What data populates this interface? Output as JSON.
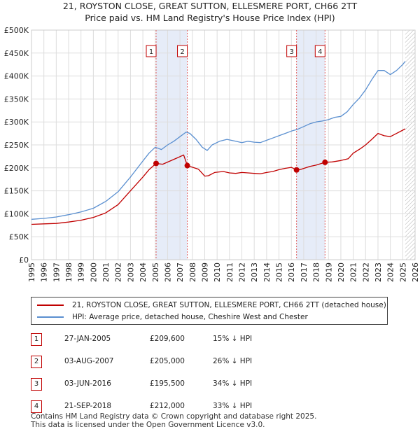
{
  "title_line1": "21, ROYSTON CLOSE, GREAT SUTTON, ELLESMERE PORT, CH66 2TT",
  "title_line2": "Price paid vs. HM Land Registry's House Price Index (HPI)",
  "chart_data": {
    "type": "line",
    "title": "21, ROYSTON CLOSE, GREAT SUTTON, ELLESMERE PORT, CH66 2TT — Price paid vs. HM Land Registry's House Price Index (HPI)",
    "xlim": [
      1995,
      2026
    ],
    "ylim": [
      0,
      500000
    ],
    "x_ticks": [
      1995,
      1996,
      1997,
      1998,
      1999,
      2000,
      2001,
      2002,
      2003,
      2004,
      2005,
      2006,
      2007,
      2008,
      2009,
      2010,
      2011,
      2012,
      2013,
      2014,
      2015,
      2016,
      2017,
      2018,
      2019,
      2020,
      2021,
      2022,
      2023,
      2024,
      2025,
      2026
    ],
    "y_ticks": [
      {
        "value": 0,
        "label": "£0"
      },
      {
        "value": 50000,
        "label": "£50K"
      },
      {
        "value": 100000,
        "label": "£100K"
      },
      {
        "value": 150000,
        "label": "£150K"
      },
      {
        "value": 200000,
        "label": "£200K"
      },
      {
        "value": 250000,
        "label": "£250K"
      },
      {
        "value": 300000,
        "label": "£300K"
      },
      {
        "value": 350000,
        "label": "£350K"
      },
      {
        "value": 400000,
        "label": "£400K"
      },
      {
        "value": 450000,
        "label": "£450K"
      },
      {
        "value": 500000,
        "label": "£500K"
      }
    ],
    "grid": true,
    "colors": {
      "hpi": "#5a8fd0",
      "price": "#c00000",
      "shade": "#e6ecf8",
      "marker_line": "#e06060"
    },
    "series": [
      {
        "name": "21, ROYSTON CLOSE, GREAT SUTTON, ELLESMERE PORT, CH66 2TT (detached house)",
        "color": "#c00000",
        "x": [
          1995.0,
          1996.0,
          1997.0,
          1998.0,
          1999.0,
          2000.0,
          2001.0,
          2002.0,
          2003.0,
          2004.0,
          2004.5,
          2005.07,
          2005.6,
          2006.2,
          2006.8,
          2007.3,
          2007.59,
          2007.8,
          2008.5,
          2009.0,
          2009.3,
          2009.8,
          2010.5,
          2011.0,
          2011.5,
          2012.0,
          2012.5,
          2013.0,
          2013.5,
          2014.0,
          2014.5,
          2015.0,
          2015.5,
          2016.0,
          2016.42,
          2016.8,
          2017.5,
          2018.0,
          2018.72,
          2019.3,
          2020.0,
          2020.6,
          2021.0,
          2021.6,
          2022.0,
          2022.5,
          2023.0,
          2023.5,
          2024.0,
          2024.5,
          2025.0,
          2025.2
        ],
        "values": [
          77000,
          78000,
          79000,
          82000,
          86000,
          92000,
          102000,
          120000,
          150000,
          180000,
          196000,
          209600,
          208000,
          215000,
          222000,
          228000,
          205000,
          203000,
          197000,
          182000,
          183000,
          190000,
          192000,
          189000,
          188000,
          190000,
          189000,
          188000,
          187000,
          190000,
          192000,
          196000,
          199000,
          201000,
          195500,
          197000,
          203000,
          206000,
          212000,
          213000,
          216000,
          220000,
          232000,
          242000,
          250000,
          262000,
          275000,
          270000,
          268000,
          275000,
          282000,
          285000
        ]
      },
      {
        "name": "HPI: Average price, detached house, Cheshire West and Chester",
        "color": "#5a8fd0",
        "x": [
          1995.0,
          1996.0,
          1997.0,
          1998.0,
          1999.0,
          2000.0,
          2001.0,
          2002.0,
          2003.0,
          2004.0,
          2004.5,
          2005.0,
          2005.5,
          2006.0,
          2006.5,
          2007.0,
          2007.5,
          2007.8,
          2008.3,
          2008.8,
          2009.2,
          2009.6,
          2010.2,
          2010.8,
          2011.5,
          2012.0,
          2012.5,
          2013.0,
          2013.5,
          2014.0,
          2014.5,
          2015.0,
          2015.5,
          2016.0,
          2016.5,
          2017.0,
          2017.5,
          2018.0,
          2018.5,
          2019.0,
          2019.5,
          2020.0,
          2020.5,
          2021.0,
          2021.5,
          2022.0,
          2022.5,
          2023.0,
          2023.5,
          2024.0,
          2024.5,
          2025.0,
          2025.2
        ],
        "values": [
          88000,
          90000,
          93000,
          98000,
          104000,
          112000,
          127000,
          148000,
          180000,
          215000,
          232000,
          245000,
          240000,
          250000,
          258000,
          268000,
          278000,
          275000,
          262000,
          245000,
          238000,
          250000,
          258000,
          262000,
          258000,
          255000,
          258000,
          256000,
          255000,
          260000,
          265000,
          270000,
          275000,
          280000,
          284000,
          290000,
          296000,
          300000,
          302000,
          305000,
          310000,
          312000,
          322000,
          338000,
          352000,
          370000,
          392000,
          412000,
          412000,
          403000,
          412000,
          425000,
          432000
        ]
      }
    ],
    "sales": [
      {
        "num": "1",
        "x": 2005.07,
        "date": "27-JAN-2005",
        "value": 209600,
        "price": "£209,600",
        "hpi": "15% ↓ HPI"
      },
      {
        "num": "2",
        "x": 2007.59,
        "date": "03-AUG-2007",
        "value": 205000,
        "price": "£205,000",
        "hpi": "26% ↓ HPI"
      },
      {
        "num": "3",
        "x": 2016.42,
        "date": "03-JUN-2016",
        "value": 195500,
        "price": "£195,500",
        "hpi": "34% ↓ HPI"
      },
      {
        "num": "4",
        "x": 2018.72,
        "date": "21-SEP-2018",
        "value": 212000,
        "price": "£212,000",
        "hpi": "33% ↓ HPI"
      }
    ],
    "shaded_ranges": [
      [
        2005.07,
        2007.59
      ],
      [
        2016.42,
        2018.72
      ]
    ],
    "forecast_from": 2025.2
  },
  "legend": {
    "price_label": "21, ROYSTON CLOSE, GREAT SUTTON, ELLESMERE PORT, CH66 2TT (detached house)",
    "hpi_label": "HPI: Average price, detached house, Cheshire West and Chester"
  },
  "footer": {
    "line1": "Contains HM Land Registry data © Crown copyright and database right 2025.",
    "line2": "This data is licensed under the Open Government Licence v3.0."
  }
}
